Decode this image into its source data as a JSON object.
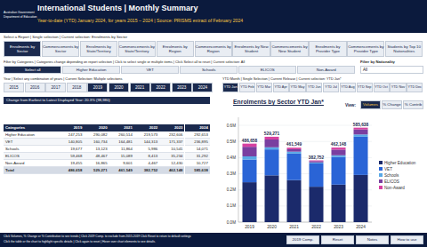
{
  "header": {
    "logo": [
      "Australian Government",
      "Department of Education"
    ],
    "title": "International Students | Monthly Summary",
    "subtitle": "Year-to-date (YTD) January 2024, for years 2015 – 2024 | Source: PRISMS extract of February 2024"
  },
  "report_select": {
    "label": "Select a Report | Single selection | Current selection: Enrolments by Sector",
    "tabs": [
      "Enrolments by Sector",
      "Commencements by Sector",
      "Enrolments by State/Territory",
      "Commencements by State/Territory",
      "Enrolments by Region",
      "Commencements by Region",
      "Enrolments by New Student",
      "Commencements by New Student",
      "Enrolments by Provider Type",
      "Commencements by Provider Type",
      "Students by Top 10 Nationalities"
    ],
    "selected": 0
  },
  "category_filter": {
    "label": "Filter by Categories | Categories change depending on report selection | Click to select single or multiple items | Click Select all to reset | Current selection: All",
    "options": [
      "Select all",
      "Higher Education",
      "VET",
      "Schools",
      "ELICOS",
      "Non-Award"
    ],
    "selected": 0
  },
  "nationality_filter": {
    "label": "Filter by Nationality",
    "value": "All"
  },
  "year_filter": {
    "label": "Year | Select any combination of years | Current Selection: Multiple selections",
    "years": [
      "2015",
      "2016",
      "2017",
      "2018",
      "2019",
      "2020",
      "2021",
      "2022",
      "2023",
      "2024"
    ],
    "selected": [
      4,
      5,
      6,
      7,
      8,
      9
    ]
  },
  "month_filter": {
    "label": "YTD Month | Single Selection | Current Release | Current selection: YTD Jan*",
    "months": [
      "YTD Jan",
      "YTD Feb",
      "YTD Mar",
      "YTD Apr",
      "YTD May",
      "YTD Jun",
      "YTD Jul",
      "YTD Aug",
      "YTD Sep",
      "YTD Oct",
      "YTD Nov",
      "YTD Dec"
    ],
    "selected": 0
  },
  "change_note": "Change from Earliest to Latest Displayed Year: 20.3% (98,980)",
  "view": {
    "label": "View:",
    "buttons": [
      "Volumes",
      "% Change",
      "% Contrib"
    ],
    "selected": 0
  },
  "table": {
    "columns": [
      "Categories",
      "2019",
      "2020",
      "2021",
      "2022",
      "2023",
      "2024"
    ],
    "rows": [
      [
        "Higher Education",
        "247,253",
        "290,082",
        "260,514",
        "219,573",
        "232,606",
        "292,653"
      ],
      [
        "VET",
        "140,805",
        "160,734",
        "164,481",
        "144,313",
        "171,337",
        "236,895"
      ],
      [
        "Schools",
        "19,677",
        "13,123",
        "11,864",
        "5,986",
        "10,541",
        "14,071"
      ],
      [
        "ELICOS",
        "59,468",
        "48,467",
        "15,089",
        "8,413",
        "35,234",
        "31,292"
      ],
      [
        "Non-Award",
        "19,455",
        "16,865",
        "9,601",
        "4,467",
        "12,430",
        "10,727"
      ],
      [
        "Total",
        "486,658",
        "529,271",
        "461,549",
        "382,752",
        "462,148",
        "585,638"
      ]
    ]
  },
  "footer": {
    "lines": [
      "Click Volumes, % Change or % Contribution to see trends | Click 2019 Comp. to exclude from 2015-2019 Click Reset to return to default settings",
      "Click the table or the chart to highlight specific details | Click again to reset | Hover over chart elements to see details."
    ],
    "buttons": [
      "2019 Comp.",
      "Reset",
      "Notes",
      "How to use"
    ]
  },
  "chart_data": {
    "type": "bar",
    "title": "Enrolments by Sector YTD Jan*",
    "stacked": true,
    "grid": true,
    "legend": "right",
    "categories": [
      "2019",
      "2020",
      "2021",
      "2022",
      "2023",
      "2024"
    ],
    "series": [
      {
        "name": "Higher Education",
        "color": "#1b2a6b",
        "values": [
          247253,
          290082,
          260514,
          219573,
          232606,
          292653
        ]
      },
      {
        "name": "VET",
        "color": "#2a64d6",
        "values": [
          140805,
          160734,
          164481,
          144313,
          171337,
          236895
        ]
      },
      {
        "name": "Schools",
        "color": "#5aa9e6",
        "values": [
          19677,
          13123,
          11864,
          5986,
          10541,
          14071
        ]
      },
      {
        "name": "ELICOS",
        "color": "#7a3fa0",
        "values": [
          59468,
          48467,
          15089,
          8413,
          35234,
          31292
        ]
      },
      {
        "name": "Non-Award",
        "color": "#d640a0",
        "values": [
          19455,
          16865,
          9601,
          4467,
          12430,
          10727
        ]
      }
    ],
    "totals": [
      486658,
      529271,
      461549,
      382752,
      462148,
      585638
    ],
    "total_labels": [
      "486,658",
      "529,271",
      "461,549",
      "382,752",
      "462,148",
      "585,638"
    ],
    "ylim": [
      0,
      650000
    ],
    "yticks": [
      {
        "value": 0,
        "label": "0.0M"
      },
      {
        "value": 100000,
        "label": "0.1M"
      },
      {
        "value": 200000,
        "label": "0.2M"
      },
      {
        "value": 300000,
        "label": "0.3M"
      },
      {
        "value": 400000,
        "label": "0.4M"
      },
      {
        "value": 500000,
        "label": "0.5M"
      },
      {
        "value": 600000,
        "label": "0.6M"
      }
    ]
  }
}
